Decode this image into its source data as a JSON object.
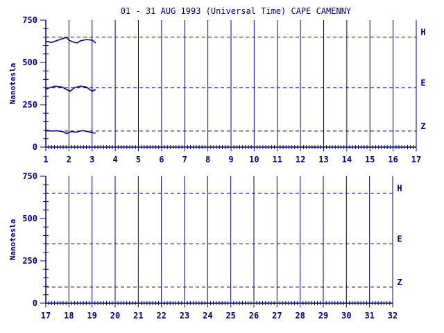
{
  "title": "01 - 31 AUG 1993 (Universal Time) CAPE CAMENNY",
  "colors": {
    "ink": "#000080",
    "background": "#ffffff"
  },
  "chart_data": [
    {
      "type": "line",
      "panel": "top",
      "title": "01 - 31 AUG 1993 (Universal Time) CAPE CAMENNY",
      "xlabel": "",
      "ylabel": "Nanotesla",
      "xlim": [
        1,
        17
      ],
      "ylim": [
        0,
        750
      ],
      "x_ticks": [
        "1",
        "2",
        "3",
        "4",
        "5",
        "6",
        "7",
        "8",
        "9",
        "10",
        "11",
        "12",
        "13",
        "14",
        "15",
        "16",
        "17"
      ],
      "y_ticks": [
        "0",
        "250",
        "500",
        "750"
      ],
      "baselines": [
        {
          "component": "H",
          "value": 650
        },
        {
          "component": "E",
          "value": 350
        },
        {
          "component": "Z",
          "value": 95
        }
      ],
      "series": [
        {
          "name": "H",
          "x": [
            1.0,
            1.25,
            1.5,
            1.75,
            1.9,
            2.0,
            2.15,
            2.35,
            2.5,
            2.75,
            3.0,
            3.15
          ],
          "y": [
            625,
            618,
            630,
            642,
            648,
            632,
            622,
            615,
            628,
            635,
            632,
            615
          ]
        },
        {
          "name": "E",
          "x": [
            1.0,
            1.15,
            1.4,
            1.7,
            1.9,
            2.05,
            2.25,
            2.5,
            2.75,
            3.0,
            3.15
          ],
          "y": [
            342,
            350,
            360,
            355,
            340,
            330,
            352,
            360,
            355,
            330,
            340
          ]
        },
        {
          "name": "Z",
          "x": [
            1.0,
            1.25,
            1.5,
            1.75,
            1.9,
            2.1,
            2.3,
            2.6,
            2.8,
            3.0,
            3.15
          ],
          "y": [
            98,
            95,
            96,
            90,
            80,
            92,
            88,
            98,
            92,
            85,
            82
          ]
        }
      ],
      "grid": "vertical lines at each day",
      "legend": "component letters at right of baselines"
    },
    {
      "type": "line",
      "panel": "bottom",
      "xlabel": "",
      "ylabel": "Nanotesla",
      "xlim": [
        17,
        32
      ],
      "ylim": [
        0,
        750
      ],
      "x_ticks": [
        "17",
        "18",
        "19",
        "20",
        "21",
        "22",
        "23",
        "24",
        "25",
        "26",
        "27",
        "28",
        "29",
        "30",
        "31",
        "32"
      ],
      "y_ticks": [
        "0",
        "250",
        "500",
        "750"
      ],
      "baselines": [
        {
          "component": "H",
          "value": 650
        },
        {
          "component": "E",
          "value": 350
        },
        {
          "component": "Z",
          "value": 95
        }
      ],
      "series": [],
      "grid": "vertical lines at each day",
      "legend": "component letters at right of baselines"
    }
  ]
}
